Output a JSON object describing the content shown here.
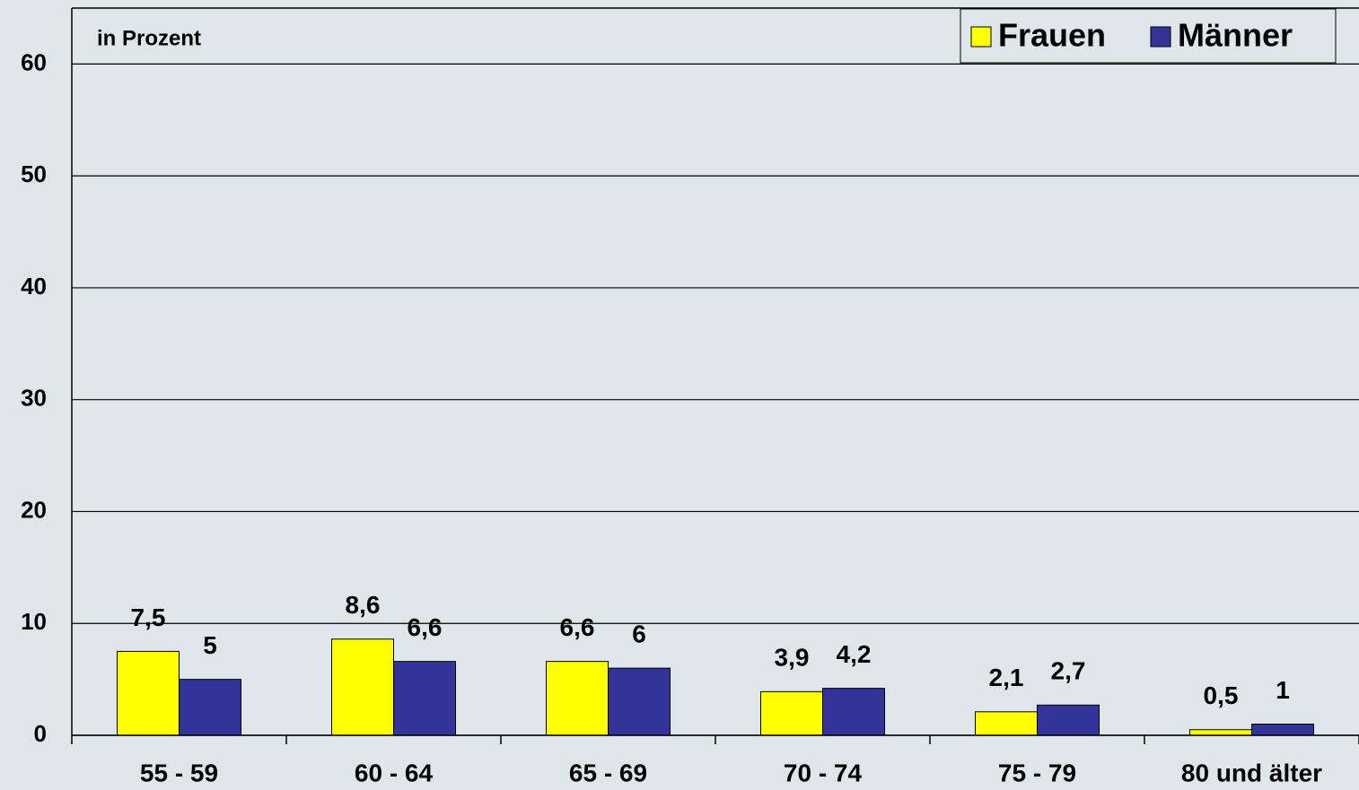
{
  "chart_data": {
    "type": "bar",
    "annotation": "in Prozent",
    "categories": [
      "55 - 59",
      "60 - 64",
      "65 - 69",
      "70 - 74",
      "75 - 79",
      "80 und älter"
    ],
    "series": [
      {
        "name": "Frauen",
        "color": "#ffff00",
        "values": [
          7.5,
          8.6,
          6.6,
          3.9,
          2.1,
          0.5
        ],
        "value_labels": [
          "7,5",
          "8,6",
          "6,6",
          "3,9",
          "2,1",
          "0,5"
        ]
      },
      {
        "name": "Männer",
        "color": "#333399",
        "values": [
          5,
          6.6,
          6,
          4.2,
          2.7,
          1
        ],
        "value_labels": [
          "5",
          "6,6",
          "6",
          "4,2",
          "2,7",
          "1"
        ]
      }
    ],
    "ylim": [
      0,
      65
    ],
    "yticks": [
      0,
      10,
      20,
      30,
      40,
      50,
      60
    ],
    "grid": true,
    "legend": "top-right"
  }
}
